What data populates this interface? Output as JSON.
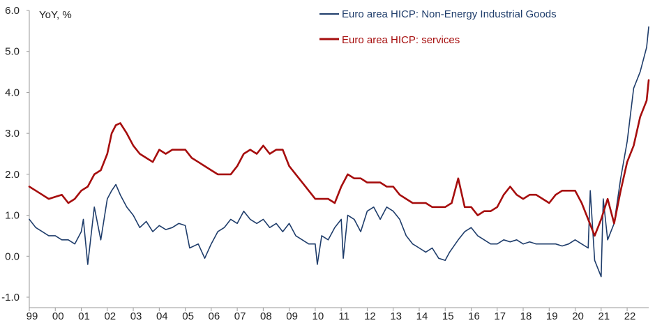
{
  "chart_data": {
    "type": "line",
    "ylabel": "YoY, %",
    "ylim": [
      -1.0,
      6.0
    ],
    "y_ticks": [
      "6.0",
      "5.0",
      "4.0",
      "3.0",
      "2.0",
      "1.0",
      "0.0",
      "-1.0"
    ],
    "x_ticks": [
      "99",
      "00",
      "01",
      "02",
      "03",
      "04",
      "05",
      "06",
      "07",
      "08",
      "09",
      "10",
      "11",
      "12",
      "13",
      "14",
      "15",
      "16",
      "17",
      "18",
      "19",
      "20",
      "21",
      "22"
    ],
    "xlim": [
      1999.0,
      2022.83
    ],
    "grid": false,
    "legend_position": "top",
    "series": [
      {
        "name": "Euro area HICP: Non-Energy Industrial Goods",
        "color": "#1f3d6b",
        "x": [
          1999.0,
          1999.25,
          1999.5,
          1999.75,
          2000.0,
          2000.25,
          2000.5,
          2000.75,
          2001.0,
          2001.08,
          2001.25,
          2001.5,
          2001.75,
          2002.0,
          2002.17,
          2002.33,
          2002.5,
          2002.75,
          2003.0,
          2003.25,
          2003.5,
          2003.75,
          2004.0,
          2004.25,
          2004.5,
          2004.75,
          2005.0,
          2005.17,
          2005.5,
          2005.75,
          2006.0,
          2006.25,
          2006.5,
          2006.75,
          2007.0,
          2007.25,
          2007.5,
          2007.75,
          2008.0,
          2008.25,
          2008.5,
          2008.75,
          2009.0,
          2009.25,
          2009.5,
          2009.75,
          2010.0,
          2010.08,
          2010.25,
          2010.5,
          2010.75,
          2011.0,
          2011.08,
          2011.25,
          2011.5,
          2011.75,
          2012.0,
          2012.25,
          2012.5,
          2012.75,
          2013.0,
          2013.25,
          2013.5,
          2013.75,
          2014.0,
          2014.25,
          2014.5,
          2014.75,
          2015.0,
          2015.17,
          2015.5,
          2015.75,
          2016.0,
          2016.25,
          2016.5,
          2016.75,
          2017.0,
          2017.25,
          2017.5,
          2017.75,
          2018.0,
          2018.25,
          2018.5,
          2018.75,
          2019.0,
          2019.25,
          2019.5,
          2019.75,
          2020.0,
          2020.25,
          2020.5,
          2020.58,
          2020.75,
          2021.0,
          2021.08,
          2021.25,
          2021.5,
          2021.75,
          2022.0,
          2022.25,
          2022.5,
          2022.75,
          2022.83
        ],
        "values": [
          0.9,
          0.7,
          0.6,
          0.5,
          0.5,
          0.4,
          0.4,
          0.3,
          0.6,
          0.9,
          -0.2,
          1.2,
          0.4,
          1.4,
          1.6,
          1.75,
          1.5,
          1.2,
          1.0,
          0.7,
          0.85,
          0.6,
          0.75,
          0.65,
          0.7,
          0.8,
          0.75,
          0.2,
          0.3,
          -0.05,
          0.3,
          0.6,
          0.7,
          0.9,
          0.8,
          1.1,
          0.9,
          0.8,
          0.9,
          0.7,
          0.8,
          0.6,
          0.8,
          0.5,
          0.4,
          0.3,
          0.3,
          -0.2,
          0.5,
          0.4,
          0.7,
          0.9,
          -0.05,
          1.0,
          0.9,
          0.6,
          1.1,
          1.2,
          0.9,
          1.2,
          1.1,
          0.9,
          0.5,
          0.3,
          0.2,
          0.1,
          0.2,
          -0.05,
          -0.1,
          0.1,
          0.4,
          0.6,
          0.7,
          0.5,
          0.4,
          0.3,
          0.3,
          0.4,
          0.35,
          0.4,
          0.3,
          0.35,
          0.3,
          0.3,
          0.3,
          0.3,
          0.25,
          0.3,
          0.4,
          0.3,
          0.2,
          1.6,
          -0.1,
          -0.5,
          1.4,
          0.4,
          0.8,
          1.9,
          2.8,
          4.1,
          4.5,
          5.1,
          5.6
        ]
      },
      {
        "name": "Euro area HICP: services",
        "color": "#a60d0d",
        "x": [
          1999.0,
          1999.25,
          1999.5,
          1999.75,
          2000.0,
          2000.25,
          2000.5,
          2000.75,
          2001.0,
          2001.25,
          2001.5,
          2001.75,
          2002.0,
          2002.17,
          2002.33,
          2002.5,
          2002.75,
          2003.0,
          2003.25,
          2003.5,
          2003.75,
          2004.0,
          2004.25,
          2004.5,
          2004.75,
          2005.0,
          2005.25,
          2005.5,
          2005.75,
          2006.0,
          2006.25,
          2006.5,
          2006.75,
          2007.0,
          2007.25,
          2007.5,
          2007.75,
          2008.0,
          2008.25,
          2008.5,
          2008.75,
          2009.0,
          2009.25,
          2009.5,
          2009.75,
          2010.0,
          2010.25,
          2010.5,
          2010.75,
          2011.0,
          2011.25,
          2011.5,
          2011.75,
          2012.0,
          2012.25,
          2012.5,
          2012.75,
          2013.0,
          2013.25,
          2013.5,
          2013.75,
          2014.0,
          2014.25,
          2014.5,
          2014.75,
          2015.0,
          2015.25,
          2015.5,
          2015.75,
          2016.0,
          2016.25,
          2016.5,
          2016.75,
          2017.0,
          2017.25,
          2017.5,
          2017.75,
          2018.0,
          2018.25,
          2018.5,
          2018.75,
          2019.0,
          2019.25,
          2019.5,
          2019.75,
          2020.0,
          2020.25,
          2020.5,
          2020.75,
          2021.0,
          2021.25,
          2021.5,
          2021.75,
          2022.0,
          2022.25,
          2022.5,
          2022.75,
          2022.83
        ],
        "values": [
          1.7,
          1.6,
          1.5,
          1.4,
          1.45,
          1.5,
          1.3,
          1.4,
          1.6,
          1.7,
          2.0,
          2.1,
          2.5,
          3.0,
          3.2,
          3.25,
          3.0,
          2.7,
          2.5,
          2.4,
          2.3,
          2.6,
          2.5,
          2.6,
          2.6,
          2.6,
          2.4,
          2.3,
          2.2,
          2.1,
          2.0,
          2.0,
          2.0,
          2.2,
          2.5,
          2.6,
          2.5,
          2.7,
          2.5,
          2.6,
          2.6,
          2.2,
          2.0,
          1.8,
          1.6,
          1.4,
          1.4,
          1.4,
          1.3,
          1.7,
          2.0,
          1.9,
          1.9,
          1.8,
          1.8,
          1.8,
          1.7,
          1.7,
          1.5,
          1.4,
          1.3,
          1.3,
          1.3,
          1.2,
          1.2,
          1.2,
          1.3,
          1.9,
          1.2,
          1.2,
          1.0,
          1.1,
          1.1,
          1.2,
          1.5,
          1.7,
          1.5,
          1.4,
          1.5,
          1.5,
          1.4,
          1.3,
          1.5,
          1.6,
          1.6,
          1.6,
          1.3,
          0.9,
          0.5,
          0.9,
          1.4,
          0.8,
          1.6,
          2.3,
          2.7,
          3.4,
          3.8,
          4.3
        ]
      }
    ]
  }
}
